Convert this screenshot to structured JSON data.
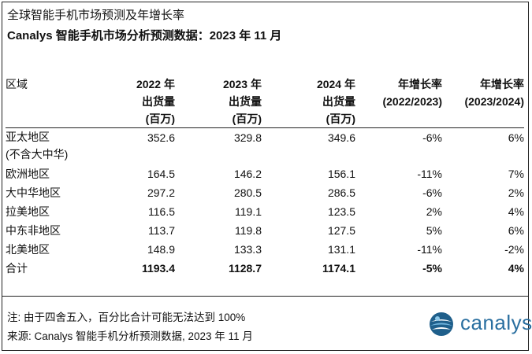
{
  "title": "全球智能手机市场预测及年增长率",
  "subtitle": "Canalys 智能手机市场分析预测数据：2023 年 11 月",
  "table": {
    "headers": [
      [
        "区域"
      ],
      [
        "2022 年",
        "出货量",
        "(百万)"
      ],
      [
        "2023 年",
        "出货量",
        "(百万)"
      ],
      [
        "2024 年",
        "出货量",
        "(百万)"
      ],
      [
        "年增长率",
        "(2022/2023)"
      ],
      [
        "年增长率",
        "(2023/2024)"
      ]
    ],
    "rows": [
      {
        "region": "亚太地区",
        "region_sub": "(不含大中华)",
        "y2022": "352.6",
        "y2023": "329.8",
        "y2024": "349.6",
        "g1": "-6%",
        "g2": "6%"
      },
      {
        "region": "欧洲地区",
        "y2022": "164.5",
        "y2023": "146.2",
        "y2024": "156.1",
        "g1": "-11%",
        "g2": "7%"
      },
      {
        "region": "大中华地区",
        "y2022": "297.2",
        "y2023": "280.5",
        "y2024": "286.5",
        "g1": "-6%",
        "g2": "2%"
      },
      {
        "region": "拉美地区",
        "y2022": "116.5",
        "y2023": "119.1",
        "y2024": "123.5",
        "g1": "2%",
        "g2": "4%"
      },
      {
        "region": "中东非地区",
        "y2022": "113.7",
        "y2023": "119.8",
        "y2024": "127.5",
        "g1": "5%",
        "g2": "6%"
      },
      {
        "region": "北美地区",
        "y2022": "148.9",
        "y2023": "133.3",
        "y2024": "131.1",
        "g1": "-11%",
        "g2": "-2%"
      }
    ],
    "total": {
      "region": "合计",
      "y2022": "1193.4",
      "y2023": "1128.7",
      "y2024": "1174.1",
      "g1": "-5%",
      "g2": "4%"
    }
  },
  "footer": {
    "note": "注: 由于四舍五入，百分比合计可能无法达到 100%",
    "source": "来源: Canalys 智能手机分析预测数据, 2023 年 11 月"
  },
  "logo": {
    "text": "canalys",
    "mark_icon": "canalys-globe-icon",
    "color": "#2a6fa0"
  }
}
